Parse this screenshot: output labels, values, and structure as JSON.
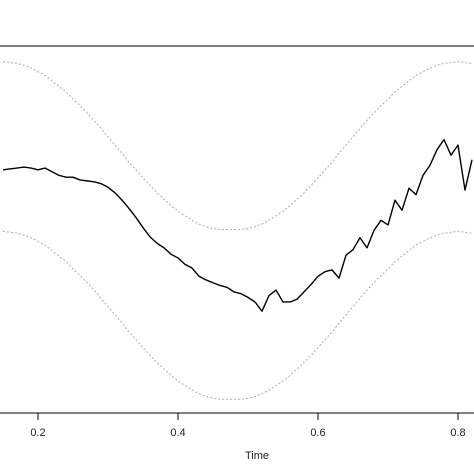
{
  "chart_data": {
    "type": "line",
    "x_label": "Time",
    "x": [
      0.15,
      0.16,
      0.17,
      0.18,
      0.19,
      0.2,
      0.21,
      0.22,
      0.23,
      0.24,
      0.25,
      0.26,
      0.27,
      0.28,
      0.29,
      0.3,
      0.31,
      0.32,
      0.33,
      0.34,
      0.35,
      0.36,
      0.37,
      0.38,
      0.39,
      0.4,
      0.41,
      0.42,
      0.43,
      0.44,
      0.45,
      0.46,
      0.47,
      0.48,
      0.49,
      0.5,
      0.51,
      0.52,
      0.53,
      0.54,
      0.55,
      0.56,
      0.57,
      0.58,
      0.59,
      0.6,
      0.61,
      0.62,
      0.63,
      0.64,
      0.65,
      0.66,
      0.67,
      0.68,
      0.69,
      0.7,
      0.71,
      0.72,
      0.73,
      0.74,
      0.75,
      0.76,
      0.77,
      0.78,
      0.79,
      0.8,
      0.81,
      0.82
    ],
    "series": [
      {
        "color": "#000000",
        "style": "solid",
        "values": [
          0.65,
          0.66,
          0.67,
          0.68,
          0.67,
          0.65,
          0.67,
          0.63,
          0.59,
          0.57,
          0.57,
          0.54,
          0.53,
          0.52,
          0.5,
          0.46,
          0.4,
          0.32,
          0.23,
          0.13,
          0.02,
          -0.08,
          -0.15,
          -0.2,
          -0.27,
          -0.31,
          -0.38,
          -0.42,
          -0.51,
          -0.55,
          -0.58,
          -0.61,
          -0.63,
          -0.68,
          -0.7,
          -0.74,
          -0.79,
          -0.89,
          -0.72,
          -0.66,
          -0.79,
          -0.79,
          -0.76,
          -0.68,
          -0.6,
          -0.51,
          -0.46,
          -0.44,
          -0.53,
          -0.28,
          -0.22,
          -0.09,
          -0.2,
          -0.01,
          0.1,
          0.05,
          0.32,
          0.21,
          0.45,
          0.38,
          0.59,
          0.7,
          0.87,
          0.98,
          0.81,
          0.92,
          0.43,
          0.76
        ]
      },
      {
        "color": "#aaaaaa",
        "style": "dotted",
        "values": [
          1.83,
          1.82,
          1.81,
          1.79,
          1.76,
          1.72,
          1.68,
          1.62,
          1.56,
          1.5,
          1.42,
          1.35,
          1.27,
          1.19,
          1.1,
          1.01,
          0.92,
          0.83,
          0.73,
          0.65,
          0.56,
          0.48,
          0.4,
          0.33,
          0.26,
          0.2,
          0.15,
          0.1,
          0.06,
          0.03,
          0.01,
          0.0,
          0.0,
          0.0,
          0.0,
          0.01,
          0.03,
          0.06,
          0.1,
          0.15,
          0.2,
          0.26,
          0.33,
          0.4,
          0.48,
          0.56,
          0.65,
          0.73,
          0.83,
          0.92,
          1.01,
          1.1,
          1.19,
          1.27,
          1.35,
          1.42,
          1.5,
          1.56,
          1.62,
          1.68,
          1.72,
          1.76,
          1.79,
          1.81,
          1.82,
          1.83,
          1.82,
          1.81
        ]
      },
      {
        "color": "#aaaaaa",
        "style": "dotted",
        "values": [
          -0.02,
          -0.03,
          -0.04,
          -0.06,
          -0.09,
          -0.13,
          -0.17,
          -0.23,
          -0.29,
          -0.35,
          -0.43,
          -0.5,
          -0.58,
          -0.66,
          -0.75,
          -0.84,
          -0.93,
          -1.02,
          -1.12,
          -1.2,
          -1.29,
          -1.37,
          -1.45,
          -1.52,
          -1.59,
          -1.65,
          -1.7,
          -1.75,
          -1.79,
          -1.82,
          -1.84,
          -1.85,
          -1.85,
          -1.85,
          -1.85,
          -1.84,
          -1.82,
          -1.79,
          -1.75,
          -1.7,
          -1.65,
          -1.59,
          -1.52,
          -1.45,
          -1.37,
          -1.29,
          -1.2,
          -1.12,
          -1.02,
          -0.93,
          -0.84,
          -0.75,
          -0.66,
          -0.58,
          -0.5,
          -0.43,
          -0.35,
          -0.29,
          -0.23,
          -0.17,
          -0.13,
          -0.09,
          -0.06,
          -0.04,
          -0.03,
          -0.02,
          -0.03,
          -0.04
        ]
      }
    ],
    "xlim": [
      0.1,
      0.85
    ],
    "xticks": [
      0.2,
      0.4,
      0.6,
      0.8
    ],
    "ylim": [
      -2,
      2
    ]
  }
}
